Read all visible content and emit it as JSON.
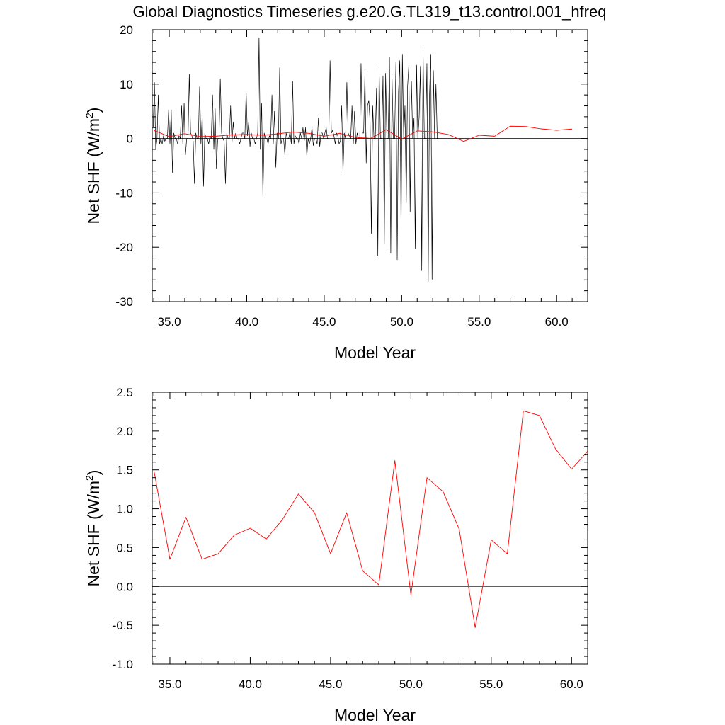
{
  "figure": {
    "title": "Global Diagnostics Timeseries g.e20.G.TL319_t13.control.001_hfreq"
  },
  "colors": {
    "monthly_line": "#000000",
    "annual_line": "#ff0000",
    "axes": "#000000",
    "background": "#ffffff"
  },
  "chart_data": [
    {
      "type": "line",
      "title": "Global Diagnostics Timeseries g.e20.G.TL319_t13.control.001_hfreq",
      "xlabel": "Model Year",
      "ylabel": "Net SHF (W/m²)",
      "ylabel_main": "Net SHF (W/m",
      "ylabel_sup": "2",
      "ylabel_end": ")",
      "xlim": [
        33.9,
        62.0
      ],
      "ylim": [
        -30,
        20
      ],
      "xticks": [
        "35.0",
        "40.0",
        "45.0",
        "50.0",
        "55.0",
        "60.0"
      ],
      "xtick_values": [
        35,
        40,
        45,
        50,
        55,
        60
      ],
      "yticks": [
        "20",
        "10",
        "0",
        "-10",
        "-20",
        "-30"
      ],
      "ytick_values": [
        20,
        10,
        0,
        -10,
        -20,
        -30
      ],
      "reference_line": 0,
      "series": [
        {
          "color": "#000000",
          "x_start": 33.96,
          "x_step": 0.0833333,
          "values": [
            2,
            10.3,
            -2,
            0,
            8,
            -1,
            0,
            -1,
            0.5,
            -0.5,
            0,
            0,
            5.3,
            -1,
            5.3,
            -6.3,
            1,
            0,
            0,
            -1,
            0.5,
            0,
            6,
            -1,
            6.5,
            -3,
            0,
            0,
            11.8,
            1,
            0.5,
            -0.5,
            -8.3,
            1,
            0,
            0,
            9.5,
            -1,
            4.3,
            -8.8,
            1,
            0,
            0,
            -1,
            0.5,
            0,
            8,
            -2,
            5.5,
            -5.5,
            0,
            0,
            11,
            1,
            0,
            -0.5,
            -8.3,
            1,
            0,
            0,
            6,
            -1,
            3,
            0,
            1,
            0,
            0,
            -1,
            0,
            1,
            1,
            0,
            8.7,
            0.5,
            3,
            -1.5,
            1,
            0,
            0,
            -1,
            0,
            1,
            18.5,
            -2,
            6.5,
            -10.8,
            1,
            0,
            0,
            -1,
            0.5,
            0,
            8,
            -1,
            5,
            -5.3,
            1,
            0,
            13,
            -1,
            0,
            0,
            -3,
            1,
            0,
            0,
            1.3,
            -1,
            10.5,
            -1,
            0.5,
            0,
            0,
            -1,
            1,
            0,
            2,
            -0.5,
            2,
            -3.3,
            0,
            -1,
            0,
            2,
            -1.3,
            0,
            0,
            -1,
            3.8,
            -1.5,
            1,
            1,
            0,
            1,
            2,
            0,
            0,
            14.3,
            1,
            1.5,
            0.5,
            -1,
            1,
            0.5,
            -1,
            -0.5,
            6,
            -6.3,
            1,
            0,
            10.3,
            1,
            0.5,
            0,
            6,
            -1,
            5,
            -1,
            1,
            0,
            0,
            13.8,
            1,
            1,
            12,
            -4.5,
            6,
            7,
            3,
            -17.5,
            6,
            0,
            0,
            9.3,
            -21.5,
            13,
            0,
            0,
            11.5,
            -19.3,
            12,
            0,
            0,
            15,
            -21.1,
            11,
            0,
            0,
            14,
            -22.3,
            8.5,
            14.3,
            -17.3,
            15.5,
            0,
            6,
            -11.8,
            9.5,
            13.5,
            -13.5,
            10.5,
            0,
            3.7,
            -20.3,
            13.5,
            0,
            4,
            13.3,
            -24.3,
            16.5,
            0,
            0,
            13.8,
            -26.3,
            8,
            15.5,
            -25.9,
            12.5,
            0,
            10,
            0,
            0
          ]
        },
        {
          "color": "#ff0000",
          "x": [
            34,
            35,
            36,
            37,
            38,
            39,
            40,
            41,
            42,
            43,
            44,
            45,
            46,
            47,
            48,
            49,
            50,
            51,
            52,
            53,
            54,
            55,
            56,
            57,
            58,
            59,
            60,
            61
          ],
          "values": [
            1.5,
            0.35,
            0.89,
            0.35,
            0.42,
            0.66,
            0.75,
            0.61,
            0.86,
            1.19,
            0.95,
            0.42,
            0.95,
            0.2,
            0.02,
            1.62,
            -0.11,
            1.4,
            1.22,
            0.74,
            -0.53,
            0.6,
            0.42,
            2.26,
            2.2,
            1.77,
            1.51,
            1.74
          ]
        }
      ]
    },
    {
      "type": "line",
      "xlabel": "Model Year",
      "ylabel": "Net SHF (W/m²)",
      "ylabel_main": "Net SHF (W/m",
      "ylabel_sup": "2",
      "ylabel_end": ")",
      "xlim": [
        33.9,
        61.0
      ],
      "ylim": [
        -1.0,
        2.5
      ],
      "xticks": [
        "35.0",
        "40.0",
        "45.0",
        "50.0",
        "55.0",
        "60.0"
      ],
      "xtick_values": [
        35,
        40,
        45,
        50,
        55,
        60
      ],
      "yticks": [
        "2.5",
        "2.0",
        "1.5",
        "1.0",
        "0.5",
        "0.0",
        "-0.5",
        "-1.0"
      ],
      "ytick_values": [
        2.5,
        2.0,
        1.5,
        1.0,
        0.5,
        0.0,
        -0.5,
        -1.0
      ],
      "reference_line": 0,
      "series": [
        {
          "color": "#ff0000",
          "x": [
            34,
            35,
            36,
            37,
            38,
            39,
            40,
            41,
            42,
            43,
            44,
            45,
            46,
            47,
            48,
            49,
            50,
            51,
            52,
            53,
            54,
            55,
            56,
            57,
            58,
            59,
            60,
            61
          ],
          "values": [
            1.5,
            0.35,
            0.89,
            0.35,
            0.42,
            0.66,
            0.75,
            0.61,
            0.86,
            1.19,
            0.95,
            0.42,
            0.95,
            0.2,
            0.02,
            1.62,
            -0.11,
            1.4,
            1.22,
            0.74,
            -0.53,
            0.6,
            0.42,
            2.26,
            2.2,
            1.77,
            1.51,
            1.74
          ]
        }
      ]
    }
  ]
}
